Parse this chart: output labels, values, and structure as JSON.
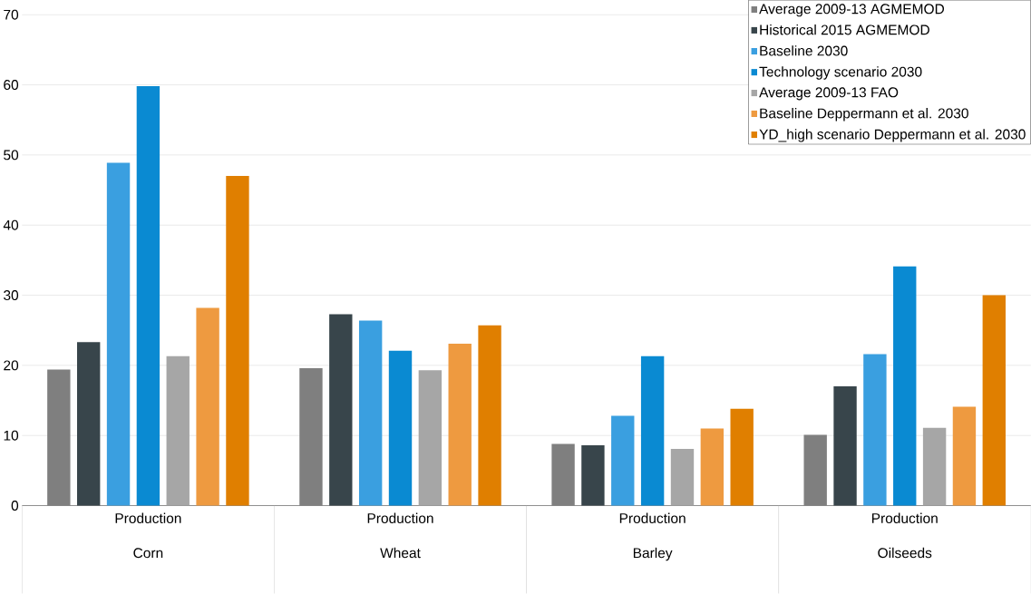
{
  "chart_data": {
    "type": "bar",
    "categories": [
      "Production Corn",
      "Production Wheat",
      "Production Barley",
      "Production Oilseeds"
    ],
    "series": [
      {
        "name": "Average 2009-13 AGMEMOD",
        "color": "#7f7f7f",
        "values": [
          19.4,
          19.6,
          8.8,
          10.1
        ]
      },
      {
        "name": "Historical 2015 AGMEMOD",
        "color": "#38454b",
        "values": [
          23.3,
          27.3,
          8.6,
          17.0
        ]
      },
      {
        "name": "Baseline 2030",
        "color": "#3a9fe0",
        "values": [
          48.9,
          26.4,
          12.8,
          21.6
        ]
      },
      {
        "name": "Technology scenario 2030",
        "color": "#0a8ad2",
        "values": [
          59.8,
          22.1,
          21.3,
          34.1
        ]
      },
      {
        "name": "Average 2009-13 FAO",
        "color": "#a6a6a6",
        "values": [
          21.3,
          19.3,
          8.1,
          11.1
        ]
      },
      {
        "name": "Baseline Deppermann et al. 2030",
        "color": "#ee9a40",
        "values": [
          28.2,
          23.1,
          11.0,
          14.1
        ]
      },
      {
        "name": "YD_high scenario Deppermann et al. 2030",
        "color": "#e07f00",
        "values": [
          47.0,
          25.7,
          13.8,
          30.0
        ]
      }
    ],
    "ylim": [
      0,
      70
    ],
    "yticks": [
      0,
      10,
      20,
      30,
      40,
      50,
      60,
      70
    ],
    "grid": "y",
    "legend": "top right"
  }
}
